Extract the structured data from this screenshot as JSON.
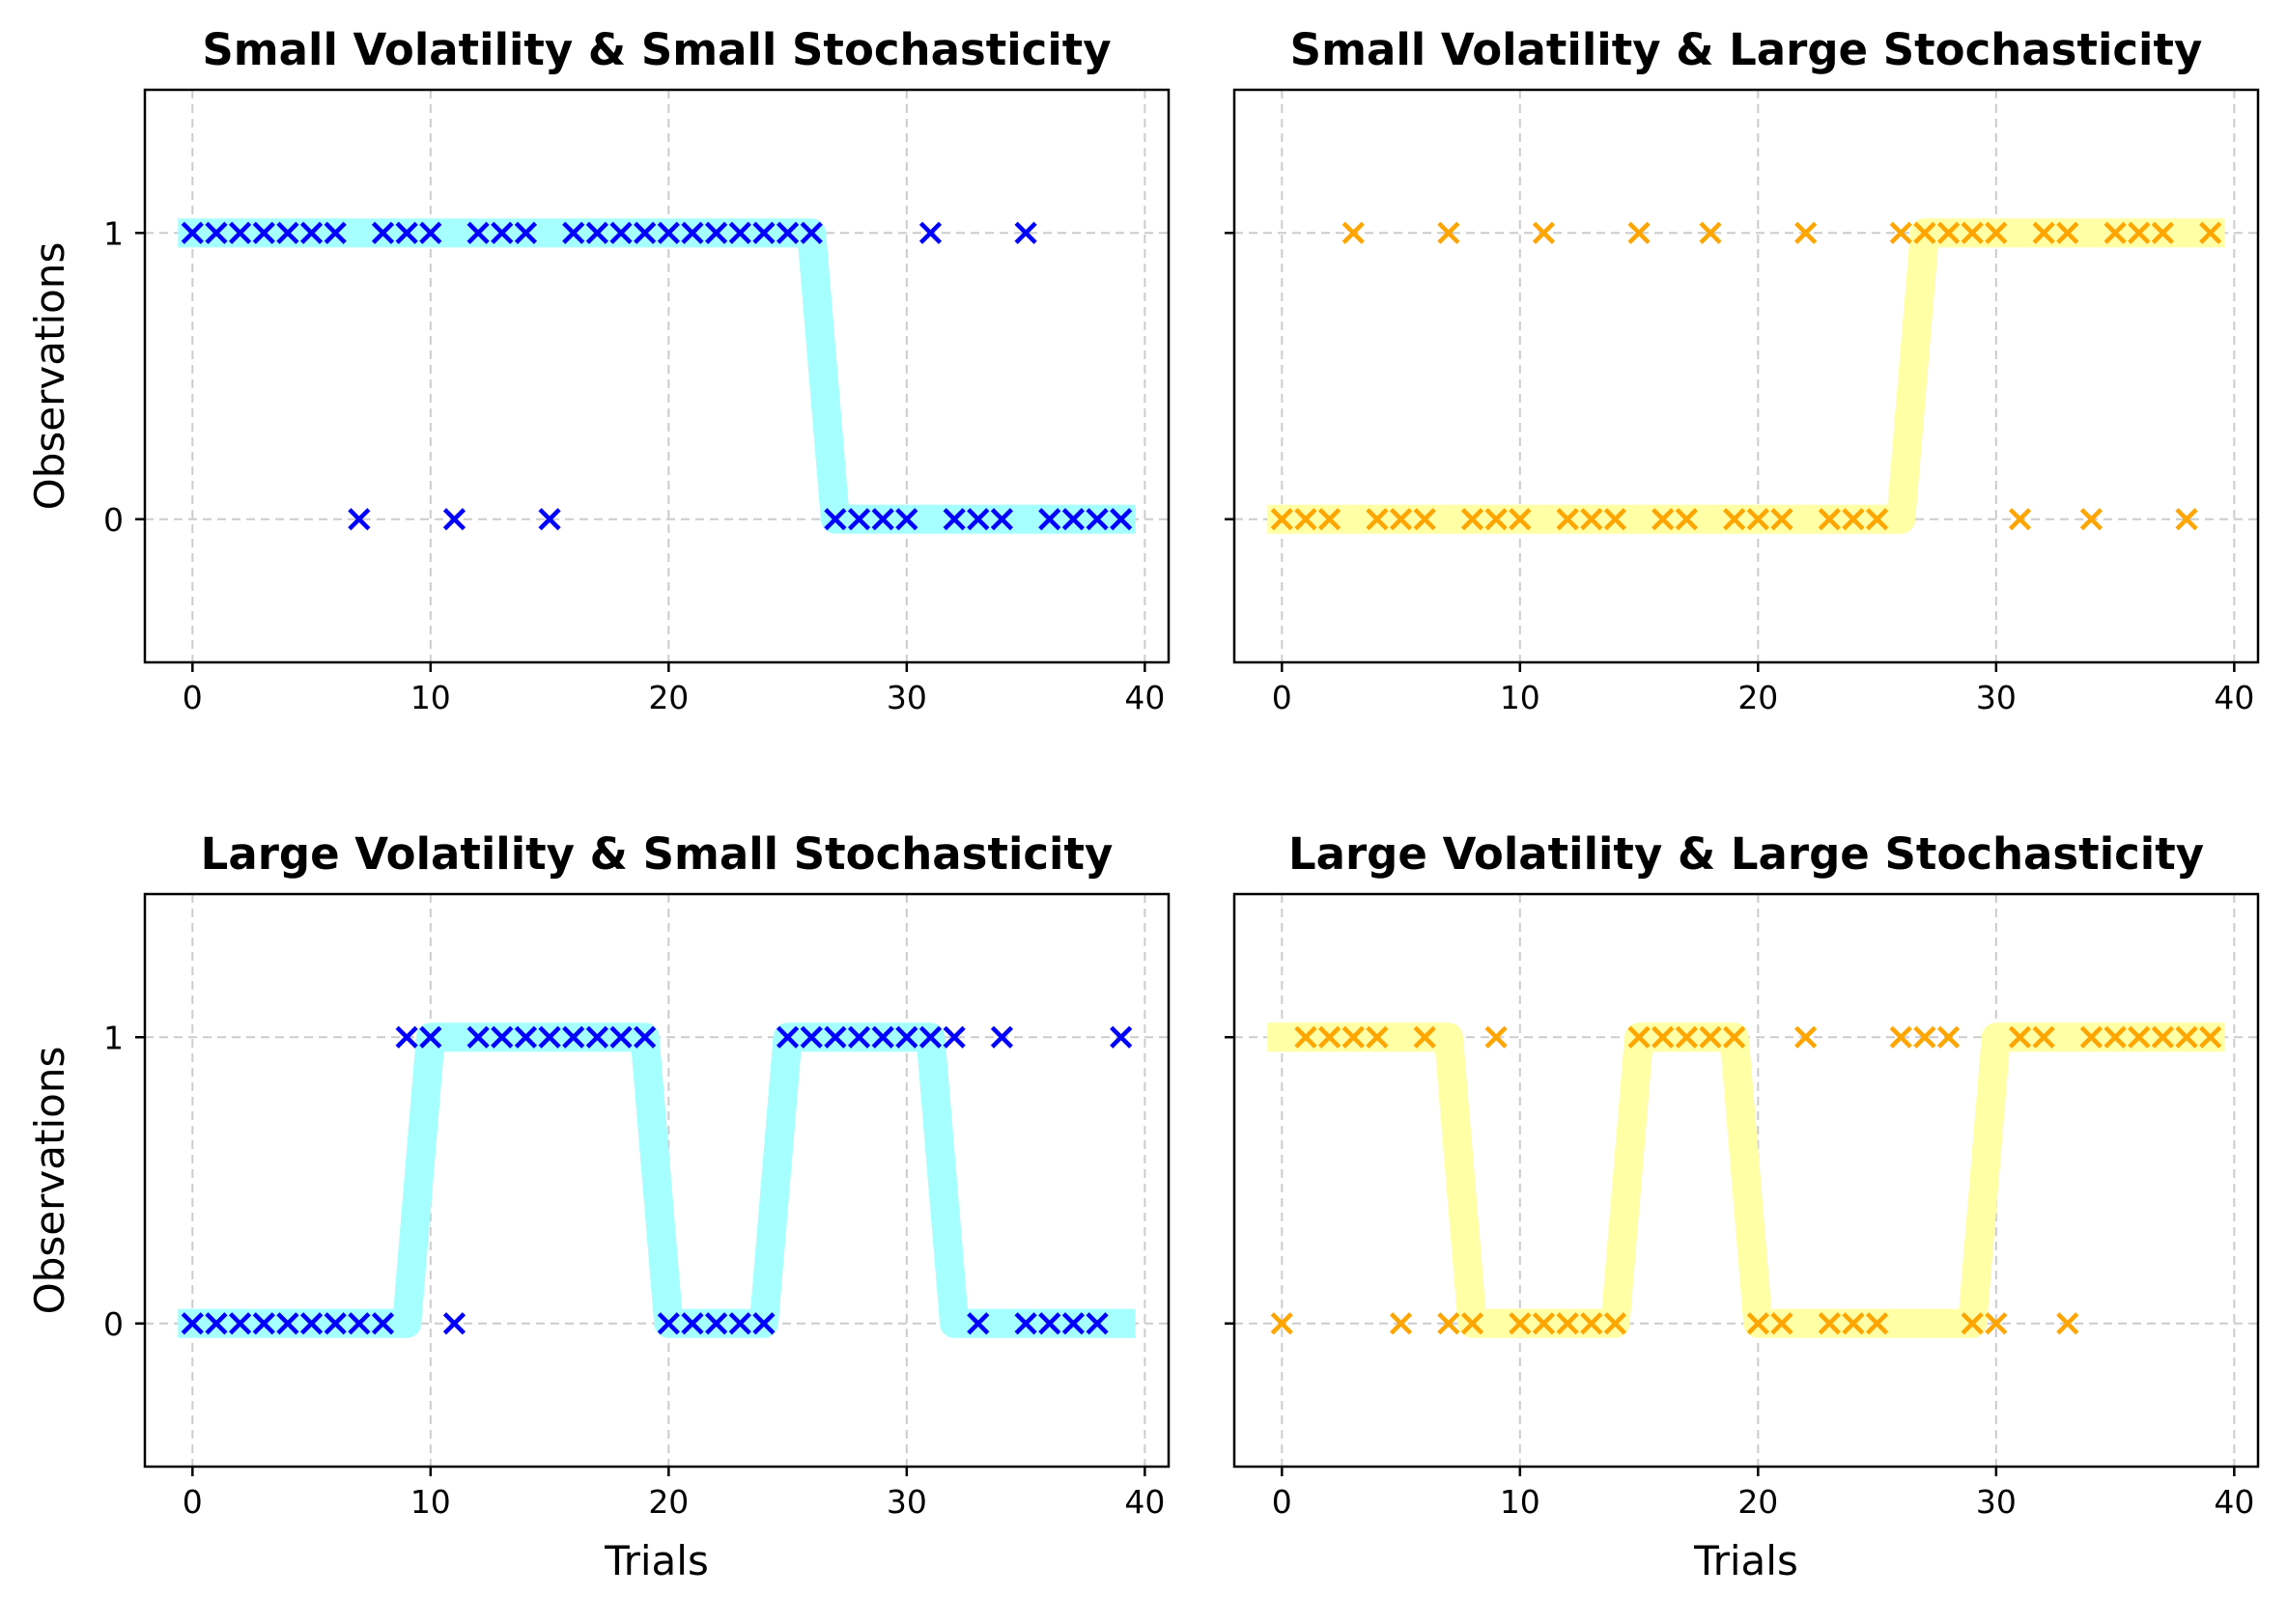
{
  "chart_data": [
    {
      "type": "scatter",
      "title": "Small Volatility & Small Stochasticity",
      "xlabel": "",
      "ylabel": "Observations",
      "xlim": [
        -2,
        41
      ],
      "ylim": [
        -0.5,
        1.5
      ],
      "xticks": [
        0,
        10,
        20,
        30,
        40
      ],
      "yticks": [
        0,
        1
      ],
      "grid": true,
      "colors": {
        "observations": "#0000ff",
        "underlying": "#a6ffff"
      },
      "underlying": [
        1,
        1,
        1,
        1,
        1,
        1,
        1,
        1,
        1,
        1,
        1,
        1,
        1,
        1,
        1,
        1,
        1,
        1,
        1,
        1,
        1,
        1,
        1,
        1,
        1,
        1,
        1,
        0,
        0,
        0,
        0,
        0,
        0,
        0,
        0,
        0,
        0,
        0,
        0,
        0
      ],
      "observations": [
        1,
        1,
        1,
        1,
        1,
        1,
        1,
        0,
        1,
        1,
        1,
        0,
        1,
        1,
        1,
        0,
        1,
        1,
        1,
        1,
        1,
        1,
        1,
        1,
        1,
        1,
        1,
        0,
        0,
        0,
        0,
        1,
        0,
        0,
        0,
        1,
        0,
        0,
        0,
        0
      ]
    },
    {
      "type": "scatter",
      "title": "Small Volatility & Large Stochasticity",
      "xlabel": "",
      "ylabel": "",
      "xlim": [
        -2,
        41
      ],
      "ylim": [
        -0.5,
        1.5
      ],
      "xticks": [
        0,
        10,
        20,
        30,
        40
      ],
      "yticks": [
        0,
        1
      ],
      "grid": true,
      "colors": {
        "observations": "#ffa500",
        "underlying": "#ffffa6"
      },
      "underlying": [
        0,
        0,
        0,
        0,
        0,
        0,
        0,
        0,
        0,
        0,
        0,
        0,
        0,
        0,
        0,
        0,
        0,
        0,
        0,
        0,
        0,
        0,
        0,
        0,
        0,
        0,
        0,
        1,
        1,
        1,
        1,
        1,
        1,
        1,
        1,
        1,
        1,
        1,
        1,
        1
      ],
      "observations": [
        0,
        0,
        0,
        1,
        0,
        0,
        0,
        1,
        0,
        0,
        0,
        1,
        0,
        0,
        0,
        1,
        0,
        0,
        1,
        0,
        0,
        0,
        1,
        0,
        0,
        0,
        1,
        1,
        1,
        1,
        1,
        0,
        1,
        1,
        0,
        1,
        1,
        1,
        0,
        1
      ]
    },
    {
      "type": "scatter",
      "title": "Large Volatility & Small Stochasticity",
      "xlabel": "Trials",
      "ylabel": "Observations",
      "xlim": [
        -2,
        41
      ],
      "ylim": [
        -0.5,
        1.5
      ],
      "xticks": [
        0,
        10,
        20,
        30,
        40
      ],
      "yticks": [
        0,
        1
      ],
      "grid": true,
      "colors": {
        "observations": "#0000ff",
        "underlying": "#a6ffff"
      },
      "underlying": [
        0,
        0,
        0,
        0,
        0,
        0,
        0,
        0,
        0,
        0,
        1,
        1,
        1,
        1,
        1,
        1,
        1,
        1,
        1,
        1,
        0,
        0,
        0,
        0,
        0,
        1,
        1,
        1,
        1,
        1,
        1,
        1,
        0,
        0,
        0,
        0,
        0,
        0,
        0,
        0
      ],
      "observations": [
        0,
        0,
        0,
        0,
        0,
        0,
        0,
        0,
        0,
        1,
        1,
        0,
        1,
        1,
        1,
        1,
        1,
        1,
        1,
        1,
        0,
        0,
        0,
        0,
        0,
        1,
        1,
        1,
        1,
        1,
        1,
        1,
        1,
        0,
        1,
        0,
        0,
        0,
        0,
        1
      ]
    },
    {
      "type": "scatter",
      "title": "Large Volatility & Large Stochasticity",
      "xlabel": "Trials",
      "ylabel": "",
      "xlim": [
        -2,
        41
      ],
      "ylim": [
        -0.5,
        1.5
      ],
      "xticks": [
        0,
        10,
        20,
        30,
        40
      ],
      "yticks": [
        0,
        1
      ],
      "grid": true,
      "colors": {
        "observations": "#ffa500",
        "underlying": "#ffffa6"
      },
      "underlying": [
        1,
        1,
        1,
        1,
        1,
        1,
        1,
        1,
        0,
        0,
        0,
        0,
        0,
        0,
        0,
        1,
        1,
        1,
        1,
        1,
        0,
        0,
        0,
        0,
        0,
        0,
        0,
        0,
        0,
        0,
        1,
        1,
        1,
        1,
        1,
        1,
        1,
        1,
        1,
        1
      ],
      "observations": [
        0,
        1,
        1,
        1,
        1,
        0,
        1,
        0,
        0,
        1,
        0,
        0,
        0,
        0,
        0,
        1,
        1,
        1,
        1,
        1,
        0,
        0,
        1,
        0,
        0,
        0,
        1,
        1,
        1,
        0,
        0,
        1,
        1,
        0,
        1,
        1,
        1,
        1,
        1,
        1
      ]
    }
  ]
}
